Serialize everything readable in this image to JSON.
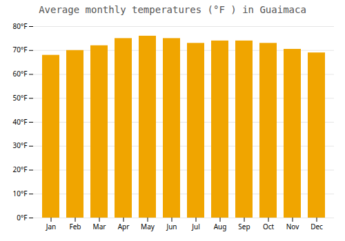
{
  "chart_data": {
    "type": "bar",
    "title": "Average monthly temperatures (°F ) in Guaimaca",
    "categories": [
      "Jan",
      "Feb",
      "Mar",
      "Apr",
      "May",
      "Jun",
      "Jul",
      "Aug",
      "Sep",
      "Oct",
      "Nov",
      "Dec"
    ],
    "values": [
      68,
      70,
      72,
      75,
      76,
      75,
      73,
      74,
      74,
      73,
      70.5,
      69
    ],
    "color": "#F0A500",
    "ylim": [
      0,
      80
    ],
    "yticks": [
      {
        "value": 0,
        "label": "0°F"
      },
      {
        "value": 10,
        "label": "10°F"
      },
      {
        "value": 20,
        "label": "20°F"
      },
      {
        "value": 30,
        "label": "30°F"
      },
      {
        "value": 40,
        "label": "40°F"
      },
      {
        "value": 50,
        "label": "50°F"
      },
      {
        "value": 60,
        "label": "60°F"
      },
      {
        "value": 70,
        "label": "70°F"
      },
      {
        "value": 80,
        "label": "80°F"
      }
    ],
    "grid": true
  }
}
